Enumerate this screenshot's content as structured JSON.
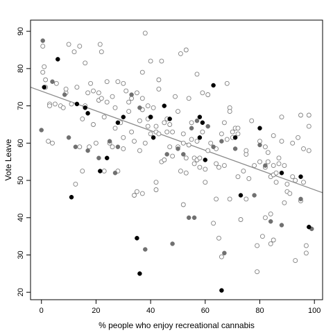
{
  "chart_data": {
    "type": "scatter",
    "title": "",
    "xlabel": "% people who enjoy recreational cannabis",
    "ylabel": "Vote Leave",
    "xlim": [
      -4,
      103
    ],
    "ylim": [
      18,
      93
    ],
    "x_ticks": [
      0,
      20,
      40,
      60,
      80,
      100
    ],
    "y_ticks": [
      20,
      30,
      40,
      50,
      60,
      70,
      80,
      90
    ],
    "grid": false,
    "legend": "none",
    "colors": {
      "open_edge": "#808080",
      "filled_gray": "#707070",
      "filled_black": "#000000",
      "line": "#888888",
      "frame": "#000000"
    },
    "trend_line": {
      "x": [
        -4,
        103
      ],
      "y": [
        75.0,
        46.7
      ]
    },
    "series": [
      {
        "style": "open",
        "points": [
          [
            0.5,
            86.0
          ],
          [
            0.5,
            79.0
          ],
          [
            1,
            80.5
          ],
          [
            1.5,
            75.0
          ],
          [
            1.5,
            77.0
          ],
          [
            2.5,
            60.5
          ],
          [
            3,
            70.5
          ],
          [
            3,
            70.0
          ],
          [
            4,
            60.0
          ],
          [
            5,
            70.5
          ],
          [
            5.5,
            76.0
          ],
          [
            7,
            70.0
          ],
          [
            8,
            69.5
          ],
          [
            9,
            73.5
          ],
          [
            9,
            74.5
          ],
          [
            10,
            86.5
          ],
          [
            11,
            70.5
          ],
          [
            12,
            84.5
          ],
          [
            12.5,
            49.0
          ],
          [
            13,
            75.0
          ],
          [
            14,
            59.0
          ],
          [
            14,
            86.0
          ],
          [
            15,
            52.5
          ],
          [
            15,
            66.5
          ],
          [
            16,
            70.0
          ],
          [
            16,
            81.5
          ],
          [
            17,
            73.5
          ],
          [
            17.5,
            59.0
          ],
          [
            18,
            76.0
          ],
          [
            19,
            74.0
          ],
          [
            19,
            65.0
          ],
          [
            20,
            60.0
          ],
          [
            21,
            73.5
          ],
          [
            21,
            71.5
          ],
          [
            21.5,
            86.5
          ],
          [
            22,
            84.5
          ],
          [
            22,
            72.0
          ],
          [
            23,
            52.5
          ],
          [
            23,
            67.0
          ],
          [
            24,
            76.5
          ],
          [
            24,
            71.0
          ],
          [
            25,
            60.0
          ],
          [
            26,
            72.5
          ],
          [
            26,
            59.0
          ],
          [
            27,
            64.0
          ],
          [
            27,
            69.5
          ],
          [
            28,
            76.5
          ],
          [
            28,
            52.5
          ],
          [
            29,
            65.5
          ],
          [
            30,
            58.5
          ],
          [
            30,
            76.0
          ],
          [
            30,
            61.5
          ],
          [
            31,
            74.0
          ],
          [
            32,
            68.5
          ],
          [
            32,
            71.0
          ],
          [
            33,
            72.0
          ],
          [
            33,
            63.0
          ],
          [
            34,
            46.0
          ],
          [
            34,
            60.5
          ],
          [
            35,
            47.0
          ],
          [
            35,
            73.5
          ],
          [
            36,
            58.0
          ],
          [
            36,
            66.0
          ],
          [
            37,
            79.0
          ],
          [
            37,
            72.0
          ],
          [
            37,
            69.0
          ],
          [
            37,
            46.5
          ],
          [
            38,
            89.5
          ],
          [
            38,
            60.0
          ],
          [
            39,
            64.5
          ],
          [
            39,
            70.0
          ],
          [
            39,
            66.5
          ],
          [
            40,
            82.0
          ],
          [
            40,
            67.0
          ],
          [
            40,
            62.5
          ],
          [
            41,
            69.5
          ],
          [
            42,
            47.5
          ],
          [
            42,
            49.5
          ],
          [
            42,
            64.5
          ],
          [
            42,
            63.0
          ],
          [
            43,
            77.0
          ],
          [
            43,
            74.5
          ],
          [
            43,
            62.5
          ],
          [
            44,
            55.0
          ],
          [
            44,
            82.0
          ],
          [
            45,
            65.5
          ],
          [
            45,
            55.5
          ],
          [
            46,
            66.5
          ],
          [
            46,
            63.0
          ],
          [
            47,
            59.0
          ],
          [
            47,
            65.0
          ],
          [
            48,
            56.5
          ],
          [
            48,
            63.0
          ],
          [
            49,
            72.5
          ],
          [
            50,
            68.5
          ],
          [
            50,
            59.0
          ],
          [
            51,
            52.5
          ],
          [
            51,
            84.0
          ],
          [
            52,
            60.0
          ],
          [
            52,
            43.5
          ],
          [
            52,
            62.5
          ],
          [
            53,
            85.0
          ],
          [
            53,
            56.0
          ],
          [
            53,
            52.0
          ],
          [
            54,
            59.5
          ],
          [
            54,
            72.0
          ],
          [
            55,
            61.0
          ],
          [
            55,
            65.5
          ],
          [
            56,
            56.0
          ],
          [
            56,
            54.5
          ],
          [
            57,
            78.5
          ],
          [
            57,
            55.5
          ],
          [
            57,
            60.5
          ],
          [
            58,
            53.5
          ],
          [
            58,
            56.0
          ],
          [
            59,
            73.5
          ],
          [
            59,
            63.0
          ],
          [
            60,
            49.5
          ],
          [
            60,
            53.0
          ],
          [
            61,
            58.0
          ],
          [
            61,
            73.0
          ],
          [
            62,
            60.0
          ],
          [
            63,
            38.5
          ],
          [
            64,
            58.5
          ],
          [
            64,
            45.0
          ],
          [
            64,
            54.5
          ],
          [
            65,
            53.5
          ],
          [
            65,
            34.5
          ],
          [
            66,
            29.5
          ],
          [
            66,
            62.5
          ],
          [
            67,
            54.0
          ],
          [
            67,
            65.5
          ],
          [
            68,
            61.0
          ],
          [
            68,
            76.0
          ],
          [
            69,
            45.0
          ],
          [
            69,
            69.5
          ],
          [
            69,
            68.5
          ],
          [
            70,
            63.0
          ],
          [
            70,
            61.5
          ],
          [
            71,
            64.0
          ],
          [
            72,
            64.0
          ],
          [
            72,
            51.0
          ],
          [
            72,
            62.5
          ],
          [
            73,
            39.5
          ],
          [
            74,
            52.5
          ],
          [
            75,
            57.0
          ],
          [
            75,
            45.0
          ],
          [
            75,
            58.0
          ],
          [
            76,
            50.5
          ],
          [
            77,
            66.0
          ],
          [
            78,
            54.0
          ],
          [
            79,
            32.5
          ],
          [
            79,
            25.5
          ],
          [
            80,
            55.0
          ],
          [
            80,
            60.5
          ],
          [
            81,
            35.0
          ],
          [
            82,
            53.5
          ],
          [
            82,
            40.0
          ],
          [
            82,
            59.0
          ],
          [
            83,
            57.5
          ],
          [
            83,
            55.0
          ],
          [
            84,
            41.0
          ],
          [
            84,
            51.0
          ],
          [
            84,
            33.0
          ],
          [
            85,
            51.5
          ],
          [
            85,
            62.0
          ],
          [
            85,
            54.0
          ],
          [
            85,
            34.0
          ],
          [
            86,
            52.0
          ],
          [
            86,
            49.5
          ],
          [
            87,
            56.0
          ],
          [
            87,
            54.5
          ],
          [
            88,
            60.5
          ],
          [
            88,
            67.0
          ],
          [
            89,
            54.0
          ],
          [
            89,
            44.0
          ],
          [
            90,
            47.0
          ],
          [
            90,
            49.0
          ],
          [
            91,
            46.5
          ],
          [
            92,
            51.0
          ],
          [
            92,
            60.0
          ],
          [
            93,
            50.0
          ],
          [
            93,
            28.5
          ],
          [
            94,
            61.5
          ],
          [
            95,
            44.5
          ],
          [
            95,
            67.5
          ],
          [
            96,
            58.5
          ],
          [
            96,
            49.5
          ],
          [
            97,
            32.5
          ],
          [
            97,
            30.5
          ],
          [
            98,
            67.5
          ],
          [
            98,
            58.0
          ],
          [
            98,
            64.5
          ]
        ]
      },
      {
        "style": "filled_gray",
        "points": [
          [
            0,
            63.5
          ],
          [
            0.5,
            87.5
          ],
          [
            4,
            76.5
          ],
          [
            8.5,
            73.0
          ],
          [
            10,
            61.5
          ],
          [
            12.5,
            59.0
          ],
          [
            17,
            58.0
          ],
          [
            21,
            56.0
          ],
          [
            25,
            60.5
          ],
          [
            27,
            52.0
          ],
          [
            28,
            59.0
          ],
          [
            33,
            73.0
          ],
          [
            36,
            69.5
          ],
          [
            38,
            31.5
          ],
          [
            46,
            57.0
          ],
          [
            48,
            33.0
          ],
          [
            50,
            58.5
          ],
          [
            52,
            57.0
          ],
          [
            54,
            40.0
          ],
          [
            55,
            64.0
          ],
          [
            56,
            40.0
          ],
          [
            57,
            66.0
          ],
          [
            61,
            64.5
          ],
          [
            63,
            59.0
          ],
          [
            66,
            60.5
          ],
          [
            67,
            30.5
          ],
          [
            71,
            58.5
          ],
          [
            78,
            46.0
          ],
          [
            80,
            59.5
          ],
          [
            82,
            54.0
          ],
          [
            84,
            39.0
          ],
          [
            88,
            38.0
          ],
          [
            95,
            45.0
          ],
          [
            99,
            37.0
          ]
        ]
      },
      {
        "style": "filled_black",
        "points": [
          [
            1,
            75.0
          ],
          [
            6,
            82.5
          ],
          [
            11,
            45.5
          ],
          [
            13,
            70.5
          ],
          [
            16,
            69.5
          ],
          [
            17,
            68.0
          ],
          [
            21.5,
            52.5
          ],
          [
            24,
            56.0
          ],
          [
            28,
            65.5
          ],
          [
            30,
            67.0
          ],
          [
            35,
            34.5
          ],
          [
            36,
            25.0
          ],
          [
            40,
            67.0
          ],
          [
            41,
            61.5
          ],
          [
            45,
            70.0
          ],
          [
            47,
            66.5
          ],
          [
            58,
            67.0
          ],
          [
            58,
            61.5
          ],
          [
            59,
            65.5
          ],
          [
            60,
            55.5
          ],
          [
            63,
            75.5
          ],
          [
            66,
            20.5
          ],
          [
            71,
            61.5
          ],
          [
            73,
            46.0
          ],
          [
            80,
            64.0
          ],
          [
            88,
            52.0
          ],
          [
            95,
            51.0
          ],
          [
            98,
            37.5
          ]
        ]
      }
    ]
  }
}
